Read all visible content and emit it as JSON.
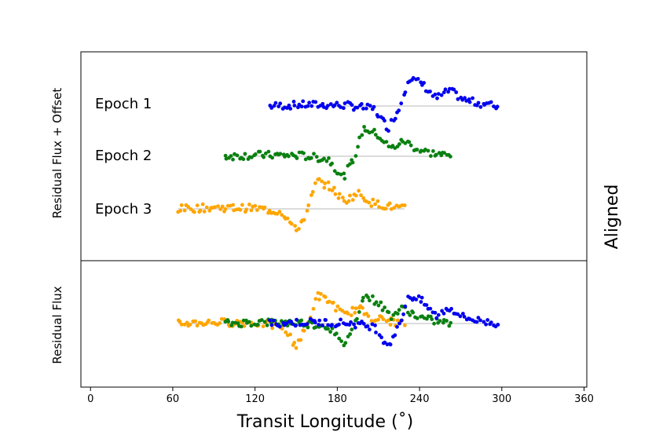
{
  "chart_data": {
    "type": "scatter",
    "title": "",
    "side_label": "Aligned",
    "xlabel": "Transit Longitude (˚)",
    "xlim": [
      -7,
      362
    ],
    "xticks": [
      0,
      60,
      120,
      180,
      240,
      300,
      360
    ],
    "top_panel": {
      "ylabel": "Residual Flux + Offset",
      "epochs": [
        {
          "name": "Epoch 1",
          "color": "#0000ee",
          "x_range": [
            131,
            297
          ]
        },
        {
          "name": "Epoch 2",
          "color": "#0a8010",
          "x_range": [
            98,
            263
          ]
        },
        {
          "name": "Epoch 3",
          "color": "#ffa500",
          "x_range": [
            64,
            229
          ]
        }
      ]
    },
    "bottom_panel": {
      "ylabel": "Residual Flux",
      "note": "epochs overlaid without offset"
    },
    "signal_model": {
      "description": "residual flux vs transit longitude (arbitrary units); shape common to all epochs",
      "epoch3_points": [
        [
          64,
          0
        ],
        [
          90,
          0.02
        ],
        [
          120,
          0.01
        ],
        [
          140,
          -0.05
        ],
        [
          150,
          -0.35
        ],
        [
          158,
          -0.05
        ],
        [
          165,
          0.45
        ],
        [
          175,
          0.35
        ],
        [
          185,
          0.12
        ],
        [
          195,
          0.25
        ],
        [
          205,
          0.1
        ],
        [
          215,
          0.05
        ],
        [
          229,
          0
        ]
      ]
    }
  }
}
